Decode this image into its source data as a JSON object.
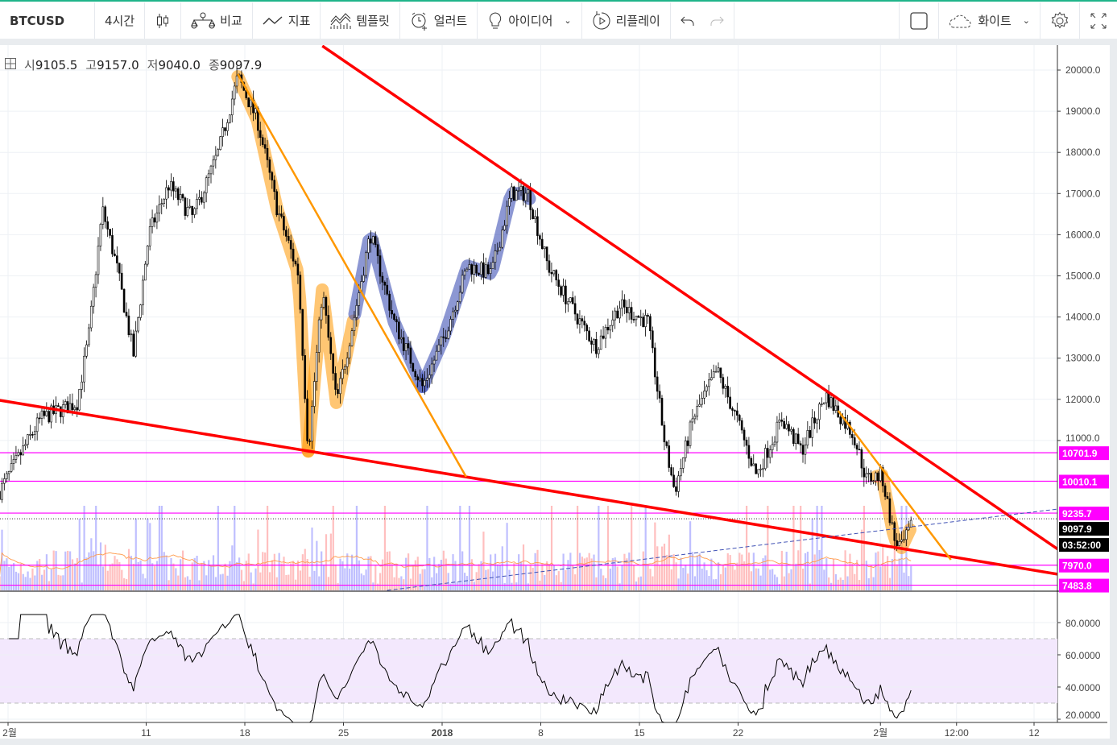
{
  "toolbar": {
    "symbol": "BTCUSD",
    "interval": "4시간",
    "compare": "비교",
    "indicators": "지표",
    "templates": "템플릿",
    "alert": "얼러트",
    "ideas": "아이디어",
    "replay": "리플레이",
    "theme": "화이트"
  },
  "ohlc": {
    "o_label": "시",
    "o": "9105.5",
    "h_label": "고",
    "h": "9157.0",
    "l_label": "저",
    "l": "9040.0",
    "c_label": "종",
    "c": "9097.9"
  },
  "colors": {
    "accent": "#1fb48a",
    "trend": "#ff0000",
    "orange": "#ff9800",
    "blue": "#3f51b5",
    "magenta": "#ff00ff",
    "rsi_band": "#f3e8fd"
  },
  "chart_data": {
    "type": "candlestick",
    "symbol": "BTCUSD",
    "price_ticks": [
      "20000.0",
      "19000.0",
      "18000.0",
      "17000.0",
      "16000.0",
      "15000.0",
      "14000.0",
      "13000.0",
      "12000.0",
      "11000.0"
    ],
    "price_ticks_values": [
      20000,
      19000,
      18000,
      17000,
      16000,
      15000,
      14000,
      13000,
      12000,
      11000
    ],
    "x_ticks": [
      {
        "label": "2월",
        "day": 0
      },
      {
        "label": "11",
        "day": 9.8
      },
      {
        "label": "18",
        "day": 16.8
      },
      {
        "label": "25",
        "day": 23.8
      },
      {
        "label": "2018",
        "day": 30.8
      },
      {
        "label": "8",
        "day": 37.8
      },
      {
        "label": "15",
        "day": 44.8
      },
      {
        "label": "22",
        "day": 51.8
      },
      {
        "label": "2월",
        "day": 61.9
      },
      {
        "label": "12:00",
        "day": 67.3
      },
      {
        "label": "12",
        "day": 72.8
      }
    ],
    "price_path": [
      [
        -0.6,
        9765
      ],
      [
        2.3,
        11527
      ],
      [
        4.9,
        11920
      ],
      [
        5.7,
        13480
      ],
      [
        6.7,
        16614
      ],
      [
        7.7,
        15240
      ],
      [
        8.9,
        13090
      ],
      [
        10,
        16030
      ],
      [
        11.4,
        17200
      ],
      [
        13.1,
        16420
      ],
      [
        14.9,
        17980
      ],
      [
        16.3,
        19840
      ],
      [
        17.7,
        18770
      ],
      [
        19.1,
        16614
      ],
      [
        20.6,
        15050
      ],
      [
        21.3,
        10740
      ],
      [
        22.3,
        14660
      ],
      [
        23.3,
        11920
      ],
      [
        24.6,
        14070
      ],
      [
        25.7,
        16030
      ],
      [
        27.4,
        13875
      ],
      [
        29.4,
        12310
      ],
      [
        30.9,
        13480
      ],
      [
        32.6,
        15240
      ],
      [
        34.3,
        15050
      ],
      [
        35.7,
        17000
      ],
      [
        36.9,
        17000
      ],
      [
        38.3,
        15240
      ],
      [
        40.6,
        13875
      ],
      [
        41.7,
        13290
      ],
      [
        43.4,
        14270
      ],
      [
        45.4,
        13875
      ],
      [
        46.6,
        10940
      ],
      [
        47.3,
        9765
      ],
      [
        48.6,
        11527
      ],
      [
        50.3,
        12700
      ],
      [
        51.7,
        11527
      ],
      [
        53.1,
        10160
      ],
      [
        54.9,
        11527
      ],
      [
        56.3,
        10740
      ],
      [
        58,
        12110
      ],
      [
        60,
        11135
      ],
      [
        60.9,
        10060
      ],
      [
        62,
        10160
      ],
      [
        62.9,
        8590
      ],
      [
        63.4,
        8395
      ],
      [
        64.2,
        8980
      ]
    ],
    "trendlines": [
      {
        "color": "red",
        "from": [
          22.3,
          20587
        ],
        "to": [
          74.5,
          8356
        ]
      },
      {
        "color": "red",
        "from": [
          -0.6,
          11977
        ],
        "to": [
          74.5,
          7750
        ]
      },
      {
        "color": "orange",
        "from": [
          16.3,
          19902
        ],
        "to": [
          32.5,
          10117
        ]
      },
      {
        "color": "orange",
        "from": [
          58.9,
          11722
        ],
        "to": [
          66.9,
          8102
        ]
      },
      {
        "color": "blue-dashed",
        "from": [
          26.9,
          7358
        ],
        "to": [
          74.5,
          9335
        ]
      }
    ],
    "highlights": [
      {
        "color": "orange",
        "from_day": 16.3,
        "to_day": 21.3
      },
      {
        "color": "orange",
        "from_day": 21.3,
        "to_day": 24.6
      },
      {
        "color": "blue",
        "from_day": 24.6,
        "to_day": 29.4
      },
      {
        "color": "blue",
        "from_day": 29.4,
        "to_day": 37.2
      },
      {
        "color": "orange",
        "from_day": 61.6,
        "to_day": 64.2
      }
    ],
    "horizontal_levels": [
      {
        "label": "10701.9",
        "value": 10701.9
      },
      {
        "label": "10010.1",
        "value": 10010.1
      },
      {
        "label": "9235.7",
        "value": 9235.7
      },
      {
        "label": "7970.0",
        "value": 7970.0
      },
      {
        "label": "7483.8",
        "value": 7483.8
      }
    ],
    "last_price": {
      "label": "9097.9",
      "value": 9097.9
    },
    "countdown": "03:52:00",
    "rsi": {
      "ticks": [
        "80.0000",
        "60.0000",
        "40.0000",
        "20.0000"
      ],
      "tick_values": [
        80,
        60,
        40,
        20
      ],
      "band": [
        30,
        70
      ]
    }
  }
}
